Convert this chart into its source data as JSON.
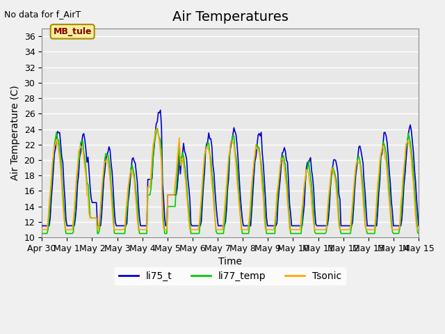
{
  "title": "Air Temperatures",
  "xlabel": "Time",
  "ylabel": "Air Temperature (C)",
  "note": "No data for f_AirT",
  "annotation": "MB_tule",
  "ylim": [
    10,
    37
  ],
  "yticks": [
    10,
    12,
    14,
    16,
    18,
    20,
    22,
    24,
    26,
    28,
    30,
    32,
    34,
    36
  ],
  "xtick_labels": [
    "Apr 30",
    "May 1",
    "May 2",
    "May 3",
    "May 4",
    "May 5",
    "May 6",
    "May 7",
    "May 8",
    "May 9",
    "May 10",
    "May 11",
    "May 12",
    "May 13",
    "May 14",
    "May 15"
  ],
  "xtick_positions": [
    0,
    1,
    2,
    3,
    4,
    5,
    6,
    7,
    8,
    9,
    10,
    11,
    12,
    13,
    14,
    15
  ],
  "line_colors": [
    "#0000cc",
    "#00cc00",
    "#ffaa00"
  ],
  "line_labels": [
    "li75_t",
    "li77_temp",
    "Tsonic"
  ],
  "plot_bg": "#e8e8e8",
  "fig_bg": "#f0f0f0",
  "grid_color": "#ffffff",
  "title_fontsize": 14,
  "label_fontsize": 10,
  "tick_fontsize": 9,
  "legend_fontsize": 10
}
